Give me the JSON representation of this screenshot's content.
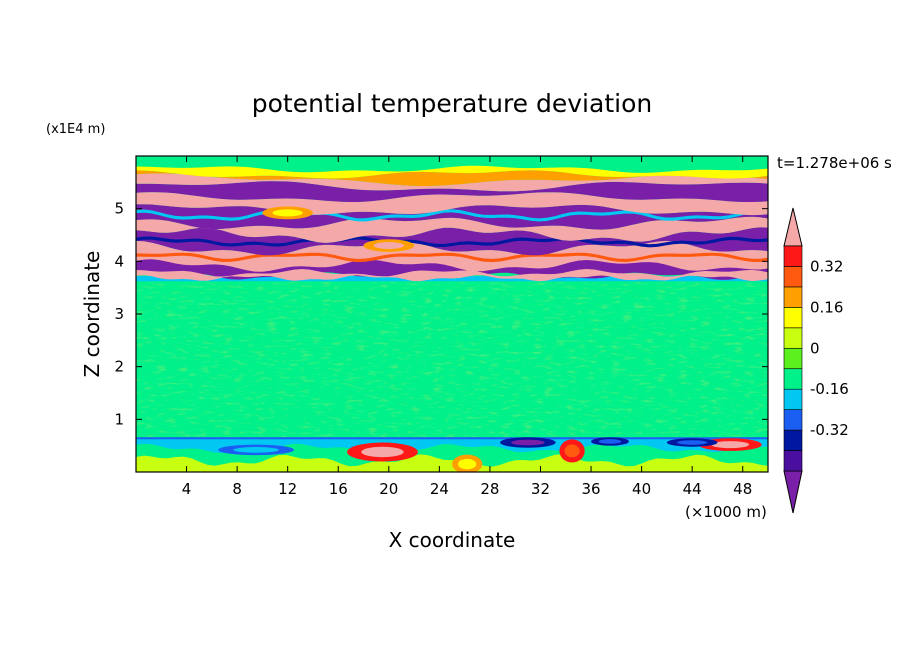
{
  "chart_data": {
    "type": "heatmap",
    "title": "potential temperature deviation",
    "xlabel": "X coordinate",
    "ylabel": "Z coordinate",
    "x_unit": "(×1000 m)",
    "y_unit": "(x1E4 m)",
    "time_label": "t=1.278e+06 s",
    "xlim": [
      0,
      50
    ],
    "ylim": [
      0,
      6
    ],
    "x_ticks": [
      4,
      8,
      12,
      16,
      20,
      24,
      28,
      32,
      36,
      40,
      44,
      48
    ],
    "y_ticks": [
      1,
      2,
      3,
      4,
      5
    ],
    "colorbar": {
      "levels": [
        -0.48,
        -0.4,
        -0.32,
        -0.24,
        -0.16,
        -0.08,
        0,
        0.08,
        0.16,
        0.24,
        0.32,
        0.4,
        0.48
      ],
      "labels": [
        "0.32",
        "0.16",
        "0",
        "-0.16",
        "-0.32"
      ],
      "label_values": [
        0.32,
        0.16,
        0,
        -0.16,
        -0.32
      ],
      "colors": [
        "#7a1fa8",
        "#4b0fa0",
        "#0018a0",
        "#1a5ef2",
        "#00c8f2",
        "#00f08a",
        "#5cf01e",
        "#c8ff10",
        "#ffff00",
        "#ffa000",
        "#ff5a10",
        "#ff1818",
        "#f5a8a8"
      ],
      "extend": "both"
    },
    "bands": [
      {
        "z": [
          0.0,
          0.65
        ],
        "description": "near-surface mixed layer with cold (blue) and warm (pink/red) patches"
      },
      {
        "z": [
          0.65,
          3.6
        ],
        "description": "near-neutral layer, mostly 0 to 0.08 (green)"
      },
      {
        "z": [
          3.6,
          5.6
        ],
        "description": "alternating strong warm (pink, >0.4) and cold (purple, <-0.4) layers"
      },
      {
        "z": [
          5.6,
          6.0
        ],
        "description": "near-neutral layer (green)"
      }
    ]
  }
}
